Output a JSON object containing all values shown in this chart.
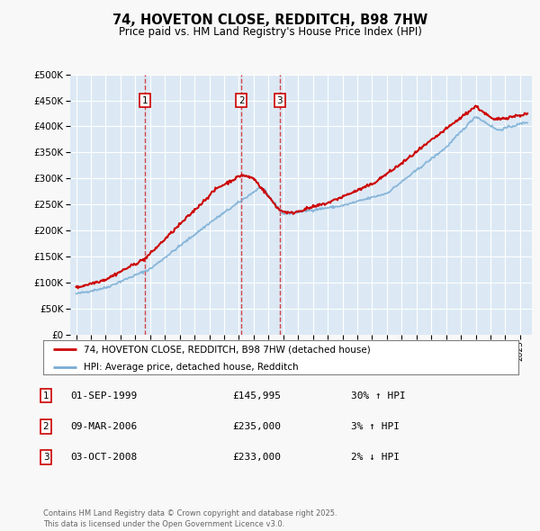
{
  "title": "74, HOVETON CLOSE, REDDITCH, B98 7HW",
  "subtitle": "Price paid vs. HM Land Registry's House Price Index (HPI)",
  "bg_color": "#dce9f5",
  "grid_color": "#ffffff",
  "sale_year_floats": [
    1999.667,
    2006.167,
    2008.75
  ],
  "sale_labels": [
    "1",
    "2",
    "3"
  ],
  "legend_label_red": "74, HOVETON CLOSE, REDDITCH, B98 7HW (detached house)",
  "legend_label_blue": "HPI: Average price, detached house, Redditch",
  "footer": "Contains HM Land Registry data © Crown copyright and database right 2025.\nThis data is licensed under the Open Government Licence v3.0.",
  "red_color": "#cc0000",
  "blue_color": "#7aadd4",
  "dashed_color": "#cc0000",
  "fig_bg": "#f8f8f8",
  "table_rows": [
    {
      "num": "1",
      "date": "01-SEP-1999",
      "price": "£145,995",
      "pct": "30% ↑ HPI"
    },
    {
      "num": "2",
      "date": "09-MAR-2006",
      "price": "£235,000",
      "pct": "3% ↑ HPI"
    },
    {
      "num": "3",
      "date": "03-OCT-2008",
      "price": "£233,000",
      "pct": "2% ↓ HPI"
    }
  ]
}
